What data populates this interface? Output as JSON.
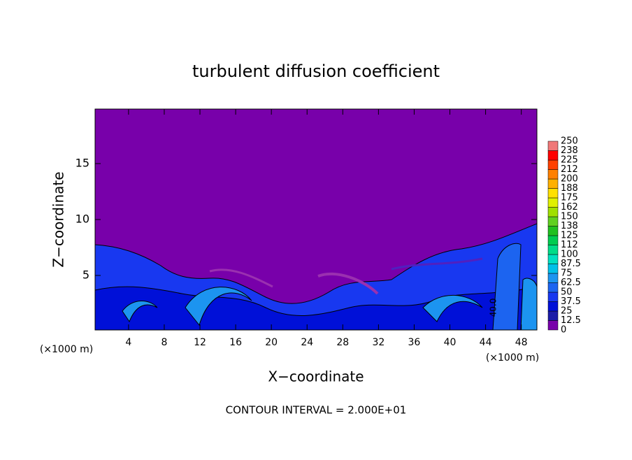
{
  "chart_data": {
    "type": "contour",
    "title": "turbulent diffusion coefficient",
    "x_label": "X−coordinate",
    "y_label": "Z−coordinate",
    "x_unit_labels": [
      "(×1000 m)",
      "(×1000 m)"
    ],
    "xlim": [
      0.25,
      49.75
    ],
    "xticks": [
      4,
      8,
      12,
      16,
      20,
      24,
      28,
      32,
      36,
      40,
      44,
      48
    ],
    "ylim": [
      0.125,
      19.875
    ],
    "yticks": [
      5,
      10,
      15
    ],
    "colorbar": {
      "levels": [
        0,
        12.5,
        25,
        37.5,
        50,
        62.5,
        75,
        87.5,
        100,
        112,
        125,
        138,
        150,
        162,
        175,
        188,
        200,
        212,
        225,
        238,
        250
      ],
      "colors": [
        "#7800aa",
        "#1c1ca8",
        "#0010d8",
        "#1838f0",
        "#1c64f0",
        "#1c94f0",
        "#00c0e8",
        "#00e0c0",
        "#00dc88",
        "#00cc50",
        "#20c020",
        "#60d020",
        "#a0e000",
        "#e0f000",
        "#ffe000",
        "#ffb000",
        "#ff8000",
        "#ff4000",
        "#ff0000",
        "#f07878"
      ]
    },
    "contour_label": "40.0",
    "annotation": "CONTOUR INTERVAL = 2.000E+01"
  }
}
